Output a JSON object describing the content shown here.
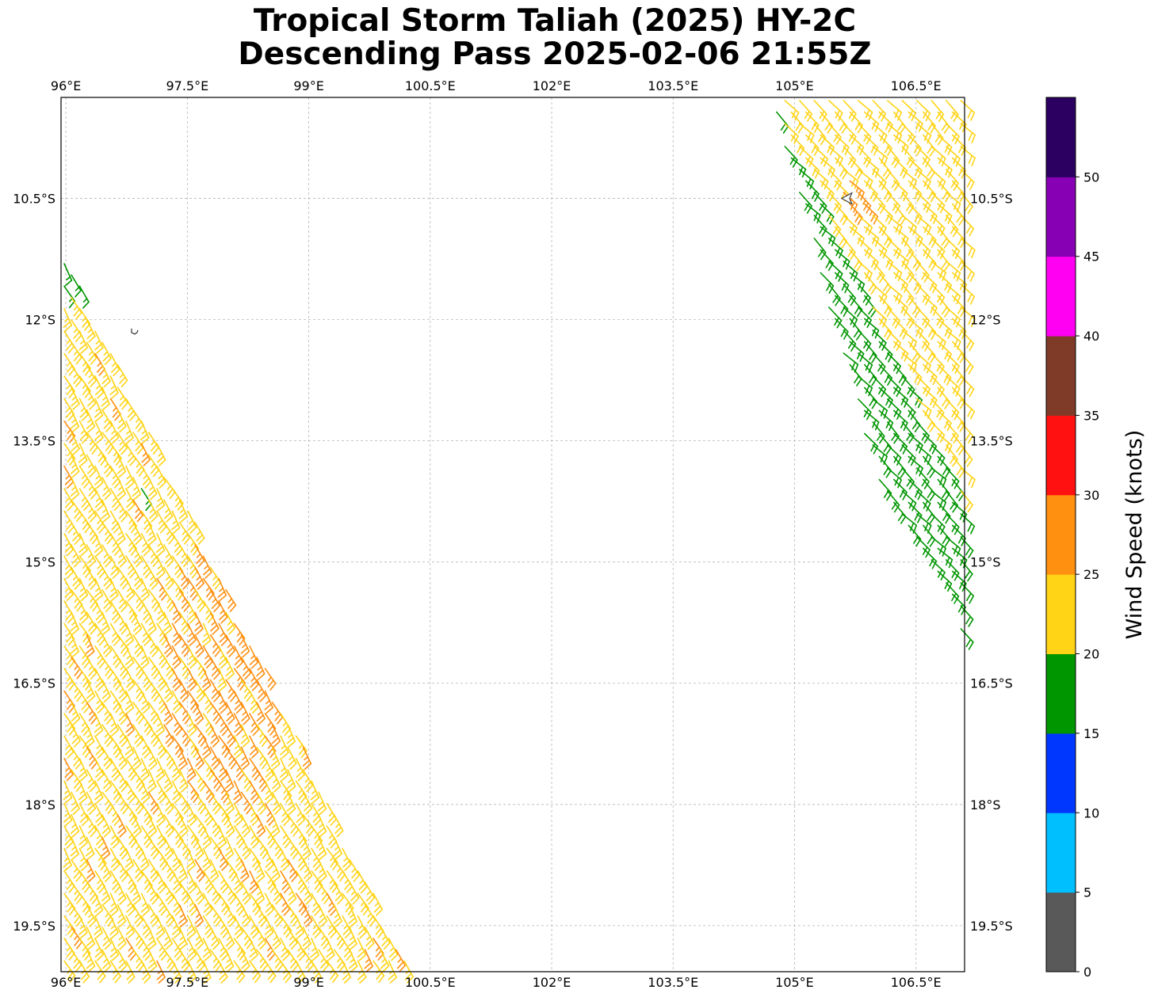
{
  "title": {
    "line1": "Tropical Storm Taliah (2025) HY-2C",
    "line2": "Descending Pass 2025-02-06 21:55Z"
  },
  "map": {
    "lon_range": [
      95.94,
      107.1
    ],
    "lat_range": [
      -20.07,
      -9.25
    ],
    "lon_ticks": [
      {
        "value": 96.0,
        "label": "96°E"
      },
      {
        "value": 97.5,
        "label": "97.5°E"
      },
      {
        "value": 99.0,
        "label": "99°E"
      },
      {
        "value": 100.5,
        "label": "100.5°E"
      },
      {
        "value": 102.0,
        "label": "102°E"
      },
      {
        "value": 103.5,
        "label": "103.5°E"
      },
      {
        "value": 105.0,
        "label": "105°E"
      },
      {
        "value": 106.5,
        "label": "106.5°E"
      }
    ],
    "lat_ticks": [
      {
        "value": -10.5,
        "label": "10.5°S"
      },
      {
        "value": -12.0,
        "label": "12°S"
      },
      {
        "value": -13.5,
        "label": "13.5°S"
      },
      {
        "value": -15.0,
        "label": "15°S"
      },
      {
        "value": -16.5,
        "label": "16.5°S"
      },
      {
        "value": -18.0,
        "label": "18°S"
      },
      {
        "value": -19.5,
        "label": "19.5°S"
      }
    ],
    "gridlines": true,
    "storm_symbol_position": {
      "lon": 105.65,
      "lat": -10.5
    },
    "islands": [
      {
        "lon": 96.85,
        "lat": -12.15
      }
    ]
  },
  "chart_data": {
    "type": "wind-barb-map",
    "colorbar": {
      "label": "Wind Speed (knots)",
      "bounds": [
        0,
        5,
        10,
        15,
        20,
        25,
        30,
        35,
        40,
        45,
        50,
        55
      ],
      "tick_labels": [
        "0",
        "5",
        "10",
        "15",
        "20",
        "25",
        "30",
        "35",
        "40",
        "45",
        "50"
      ],
      "colors": [
        "#595959",
        "#00bfff",
        "#0037ff",
        "#009600",
        "#ffd416",
        "#ff9010",
        "#ff1111",
        "#7f3b28",
        "#ff00f2",
        "#8800b3",
        "#2c0060"
      ]
    },
    "swaths": [
      {
        "name": "west",
        "edges": [
          {
            "lon": 95.9,
            "lat": -11.0
          },
          {
            "lon": 100.3,
            "lat": -20.1
          },
          {
            "lon": 95.9,
            "lat": -20.1
          }
        ],
        "direction_from_deg": 150,
        "speed_zones": [
          {
            "note": "northern tip",
            "lat_range": [
              -11.2,
              -11.6
            ],
            "speed_kt": 17
          },
          {
            "note": "main swath",
            "lat_range": [
              -11.6,
              -20.1
            ],
            "speed_kt": 23
          },
          {
            "note": "central core",
            "center": {
              "lon": 97.9,
              "lat": -16.3
            },
            "speed_kt": 27
          },
          {
            "note": "isolated",
            "center": {
              "lon": 96.9,
              "lat": -14.1
            },
            "speed_kt": 17
          }
        ]
      },
      {
        "name": "east",
        "edges": [
          {
            "lon": 104.7,
            "lat": -9.25
          },
          {
            "lon": 107.1,
            "lat": -9.25
          },
          {
            "lon": 107.1,
            "lat": -15.9
          },
          {
            "lon": 106.1,
            "lat": -14.3
          }
        ],
        "direction_from_deg": 135,
        "speed_zones": [
          {
            "note": "northern swath",
            "speed_kt": 22
          },
          {
            "note": "southeastern swath",
            "speed_kt": 18
          },
          {
            "note": "near storm",
            "center": {
              "lon": 105.75,
              "lat": -10.45
            },
            "speed_kt": 27
          }
        ]
      }
    ]
  }
}
